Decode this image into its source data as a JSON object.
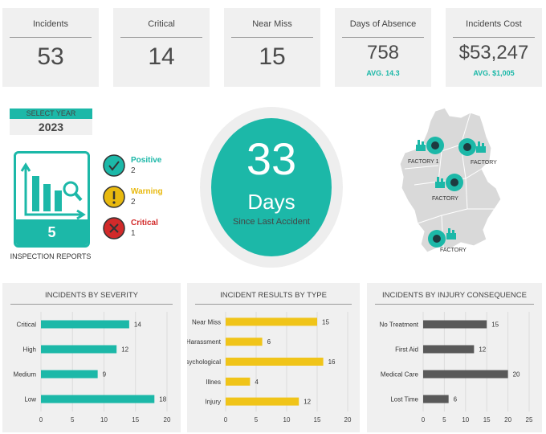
{
  "kpis": [
    {
      "label": "Incidents",
      "value": "53",
      "sub": ""
    },
    {
      "label": "Critical",
      "value": "14",
      "sub": ""
    },
    {
      "label": "Near Miss",
      "value": "15",
      "sub": ""
    },
    {
      "label": "Days of Absence",
      "value": "758",
      "sub": "AVG. 14.3"
    },
    {
      "label": "Incidents Cost",
      "value": "$53,247",
      "sub": "AVG. $1,005"
    }
  ],
  "year": {
    "label": "SELECT YEAR",
    "value": "2023"
  },
  "inspections": {
    "count": "5",
    "label": "INSPECTION REPORTS"
  },
  "statuses": [
    {
      "name": "Positive",
      "count": "2",
      "color": "#1cb8a8",
      "icon": "check-icon"
    },
    {
      "name": "Warning",
      "count": "2",
      "color": "#e8b90f",
      "icon": "exclamation-icon"
    },
    {
      "name": "Critical",
      "count": "1",
      "color": "#d22a2a",
      "icon": "x-icon"
    }
  ],
  "days_since": {
    "value": "33",
    "unit": "Days",
    "caption": "Since Last Accident"
  },
  "map": {
    "factories": [
      "FACTORY 1",
      "FACTORY",
      "FACTORY",
      "FACTORY"
    ]
  },
  "colors": {
    "teal": "#1cb8a8",
    "yellow": "#f0c419",
    "gray": "#595959"
  },
  "chart_data": [
    {
      "type": "bar",
      "title": "INCIDENTS BY SEVERITY",
      "categories": [
        "Critical",
        "High",
        "Medium",
        "Low"
      ],
      "values": [
        14,
        12,
        9,
        18
      ],
      "xlim": [
        0,
        20
      ],
      "ticks": [
        0,
        5,
        10,
        15,
        20
      ],
      "color": "#1cb8a8"
    },
    {
      "type": "bar",
      "title": "INCIDENT RESULTS BY TYPE",
      "categories": [
        "Near Miss",
        "Harassment",
        "Psychological",
        "Illnes",
        "Injury"
      ],
      "values": [
        15,
        6,
        16,
        4,
        12
      ],
      "xlim": [
        0,
        20
      ],
      "ticks": [
        0,
        5,
        10,
        15,
        20
      ],
      "color": "#f0c419"
    },
    {
      "type": "bar",
      "title": "INCIDENTS BY INJURY CONSEQUENCE",
      "categories": [
        "No Treatment",
        "First Aid",
        "Medical Care",
        "Lost Time"
      ],
      "values": [
        15,
        12,
        20,
        6
      ],
      "xlim": [
        0,
        25
      ],
      "ticks": [
        0,
        5,
        10,
        15,
        20,
        25
      ],
      "color": "#595959"
    }
  ]
}
